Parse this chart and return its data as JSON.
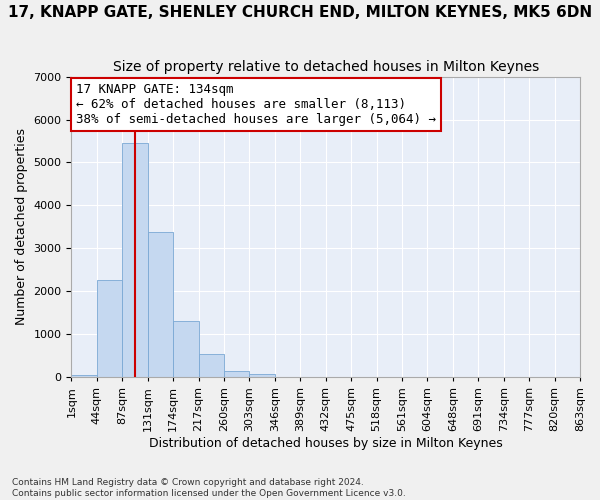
{
  "title": "17, KNAPP GATE, SHENLEY CHURCH END, MILTON KEYNES, MK5 6DN",
  "subtitle": "Size of property relative to detached houses in Milton Keynes",
  "xlabel": "Distribution of detached houses by size in Milton Keynes",
  "ylabel": "Number of detached properties",
  "footnote1": "Contains HM Land Registry data © Crown copyright and database right 2024.",
  "footnote2": "Contains public sector information licensed under the Open Government Licence v3.0.",
  "bin_labels": [
    "1sqm",
    "44sqm",
    "87sqm",
    "131sqm",
    "174sqm",
    "217sqm",
    "260sqm",
    "303sqm",
    "346sqm",
    "389sqm",
    "432sqm",
    "475sqm",
    "518sqm",
    "561sqm",
    "604sqm",
    "648sqm",
    "691sqm",
    "734sqm",
    "777sqm",
    "820sqm",
    "863sqm"
  ],
  "bar_values": [
    60,
    2270,
    5450,
    3380,
    1310,
    540,
    155,
    75,
    10,
    0,
    0,
    0,
    0,
    0,
    0,
    0,
    0,
    0,
    0,
    0
  ],
  "bar_color": "#c5d8f0",
  "bar_edgecolor": "#7aa8d4",
  "vline_color": "#cc0000",
  "vline_position": 2.5,
  "ylim": [
    0,
    7000
  ],
  "yticks": [
    0,
    1000,
    2000,
    3000,
    4000,
    5000,
    6000,
    7000
  ],
  "annotation_line1": "17 KNAPP GATE: 134sqm",
  "annotation_line2": "← 62% of detached houses are smaller (8,113)",
  "annotation_line3": "38% of semi-detached houses are larger (5,064) →",
  "annotation_box_color": "#ffffff",
  "annotation_box_edgecolor": "#cc0000",
  "background_color": "#e8eef8",
  "grid_color": "#ffffff",
  "title_fontsize": 11,
  "subtitle_fontsize": 10,
  "axis_label_fontsize": 9,
  "tick_fontsize": 8,
  "annotation_fontsize": 9
}
